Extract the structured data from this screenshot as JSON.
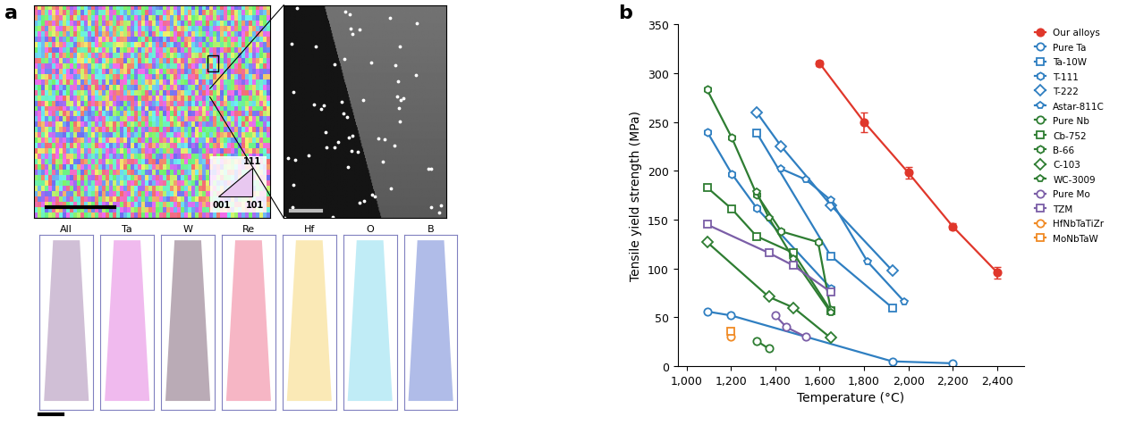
{
  "panels": [
    "a",
    "b"
  ],
  "panel_a": {
    "ipf_corners": [
      "111",
      "001",
      "101"
    ],
    "apt_labels": [
      "All",
      "Ta",
      "W",
      "Re",
      "Hf",
      "O",
      "B"
    ]
  },
  "chart_data": {
    "type": "line",
    "xlabel": "Temperature (°C)",
    "ylabel": "Tensile yield strength (MPa)",
    "xlim": [
      960,
      2520
    ],
    "xticks": [
      {
        "value": 1000,
        "label": "1,000"
      },
      {
        "value": 1200,
        "label": "1,200"
      },
      {
        "value": 1400,
        "label": "1,400"
      },
      {
        "value": 1600,
        "label": "1,600"
      },
      {
        "value": 1800,
        "label": "1,800"
      },
      {
        "value": 2000,
        "label": "2,000"
      },
      {
        "value": 2200,
        "label": "2,200"
      },
      {
        "value": 2400,
        "label": "2,400"
      }
    ],
    "ylim": [
      0,
      350
    ],
    "yticks": [
      0,
      50,
      100,
      150,
      200,
      250,
      300,
      350
    ],
    "legend": "right",
    "series": [
      {
        "name": "Our alloys",
        "color": "#e0372b",
        "marker": "circle",
        "x": [
          1600,
          1800,
          2000,
          2200,
          2400
        ],
        "values": [
          310,
          250,
          198,
          143,
          96
        ],
        "errors": [
          3,
          10,
          6,
          3,
          6
        ]
      },
      {
        "name": "Pure Ta",
        "color": "#2f7fc1",
        "marker": "circle",
        "x": [
          1093,
          1200,
          1927,
          2200
        ],
        "values": [
          56,
          52,
          5,
          3
        ]
      },
      {
        "name": "Ta-10W",
        "color": "#2f7fc1",
        "marker": "square",
        "x": [
          1316,
          1650,
          1927
        ],
        "values": [
          239,
          113,
          60
        ]
      },
      {
        "name": "T-111",
        "color": "#2f7fc1",
        "marker": "hexagon",
        "x": [
          1093,
          1204,
          1316,
          1650
        ],
        "values": [
          240,
          197,
          162,
          80
        ]
      },
      {
        "name": "T-222",
        "color": "#2f7fc1",
        "marker": "diamond",
        "x": [
          1316,
          1427,
          1650,
          1927
        ],
        "values": [
          260,
          225,
          165,
          98
        ]
      },
      {
        "name": "Astar-811C",
        "color": "#2f7fc1",
        "marker": "pentagon",
        "x": [
          1427,
          1538,
          1650,
          1816,
          1982
        ],
        "values": [
          202,
          191,
          170,
          107,
          66
        ]
      },
      {
        "name": "Pure Nb",
        "color": "#2e7d32",
        "marker": "circle",
        "x": [
          1316,
          1371
        ],
        "values": [
          26,
          18
        ]
      },
      {
        "name": "Cb-752",
        "color": "#2e7d32",
        "marker": "square",
        "x": [
          1093,
          1204,
          1316,
          1482,
          1650
        ],
        "values": [
          183,
          161,
          133,
          116,
          57
        ]
      },
      {
        "name": "B-66",
        "color": "#2e7d32",
        "marker": "hexagon",
        "x": [
          1093,
          1204,
          1316,
          1427,
          1593,
          1650
        ],
        "values": [
          283,
          234,
          176,
          138,
          127,
          58
        ]
      },
      {
        "name": "C-103",
        "color": "#2e7d32",
        "marker": "diamond",
        "x": [
          1093,
          1371,
          1482,
          1650
        ],
        "values": [
          127,
          71,
          60,
          29
        ]
      },
      {
        "name": "WC-3009",
        "color": "#2e7d32",
        "marker": "pentagon",
        "x": [
          1316,
          1371,
          1482,
          1650
        ],
        "values": [
          178,
          152,
          110,
          55
        ]
      },
      {
        "name": "Pure Mo",
        "color": "#7b5ea7",
        "marker": "circle",
        "x": [
          1400,
          1450,
          1538
        ],
        "values": [
          52,
          40,
          30
        ]
      },
      {
        "name": "TZM",
        "color": "#7b5ea7",
        "marker": "square",
        "x": [
          1093,
          1371,
          1482,
          1650
        ],
        "values": [
          145,
          116,
          103,
          76
        ]
      },
      {
        "name": "HfNbTaTiZr",
        "color": "#f08a24",
        "marker": "circle",
        "x": [
          1200
        ],
        "values": [
          30
        ]
      },
      {
        "name": "MoNbTaW",
        "color": "#f08a24",
        "marker": "square",
        "x": [
          1200
        ],
        "values": [
          36
        ]
      }
    ]
  }
}
